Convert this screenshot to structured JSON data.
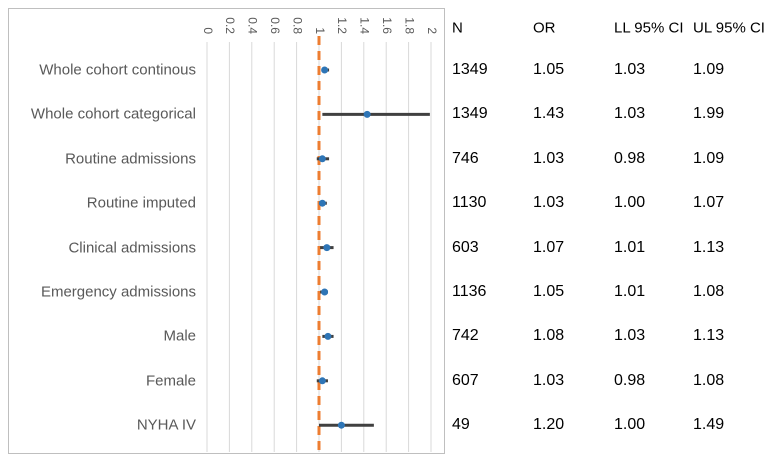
{
  "chart_data": {
    "type": "forest",
    "x_ticks": [
      "0",
      "0.2",
      "0.4",
      "0.6",
      "0.8",
      "1",
      "1.2",
      "1.4",
      "1.6",
      "1.8",
      "2"
    ],
    "xlim": [
      0,
      2
    ],
    "reference_line": 1,
    "grid": true,
    "colors": {
      "point": "#2e75b6",
      "ci_line": "#404040",
      "reference": "#ed7d31",
      "grid": "#d9d9d9"
    },
    "table_headers": [
      "N",
      "OR",
      "LL 95% CI",
      "UL 95% CI"
    ],
    "rows": [
      {
        "label": "Whole cohort continous",
        "n": "1349",
        "or": "1.05",
        "ll": "1.03",
        "ul": "1.09"
      },
      {
        "label": "Whole cohort categorical",
        "n": "1349",
        "or": "1.43",
        "ll": "1.03",
        "ul": "1.99"
      },
      {
        "label": "Routine admissions",
        "n": "746",
        "or": "1.03",
        "ll": "0.98",
        "ul": "1.09"
      },
      {
        "label": "Routine imputed",
        "n": "1130",
        "or": "1.03",
        "ll": "1.00",
        "ul": "1.07"
      },
      {
        "label": "Clinical admissions",
        "n": "603",
        "or": "1.07",
        "ll": "1.01",
        "ul": "1.13"
      },
      {
        "label": "Emergency admissions",
        "n": "1136",
        "or": "1.05",
        "ll": "1.01",
        "ul": "1.08"
      },
      {
        "label": "Male",
        "n": "742",
        "or": "1.08",
        "ll": "1.03",
        "ul": "1.13"
      },
      {
        "label": "Female",
        "n": "607",
        "or": "1.03",
        "ll": "0.98",
        "ul": "1.08"
      },
      {
        "label": "NYHA IV",
        "n": "49",
        "or": "1.20",
        "ll": "1.00",
        "ul": "1.49"
      }
    ]
  }
}
